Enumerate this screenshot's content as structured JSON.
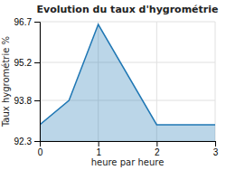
{
  "chart_data": {
    "type": "area",
    "title": "Evolution du taux d'hygrométrie",
    "x_label": "heure par heure",
    "y_label": "Taux hygrométrie %",
    "x": [
      0,
      0.5,
      1,
      2,
      3
    ],
    "values": [
      92.9,
      93.8,
      96.6,
      92.9,
      92.9
    ],
    "xlim": [
      0,
      3
    ],
    "xticks": [
      0,
      1,
      2,
      3
    ],
    "ylim": [
      92.3,
      96.7
    ],
    "yticks": [
      92.3,
      93.8,
      95.2,
      96.7
    ],
    "grid": true
  }
}
